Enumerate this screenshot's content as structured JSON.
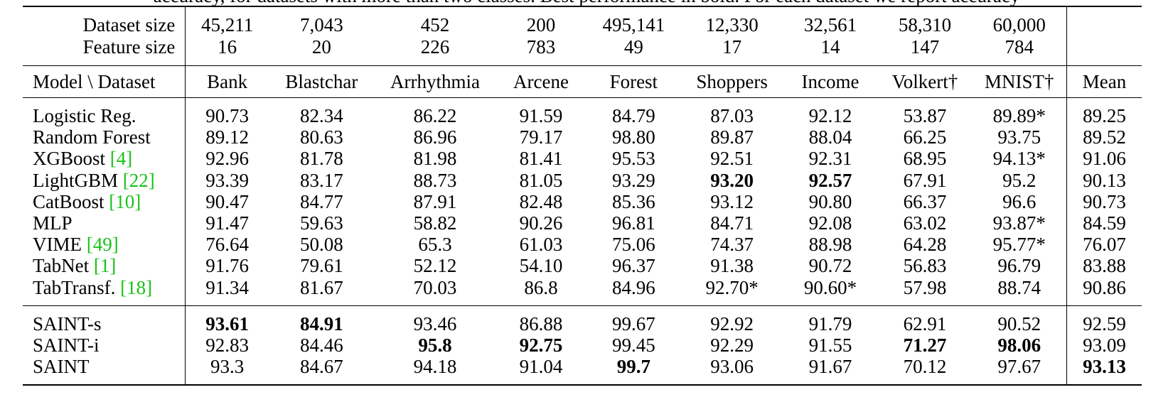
{
  "caption_fragment": "accuracy, for datasets with more than two classes. Best performance in bold. For each dataset we report accuracy",
  "meta_rows": [
    {
      "label": "Dataset size",
      "values": [
        "45,211",
        "7,043",
        "452",
        "200",
        "495,141",
        "12,330",
        "32,561",
        "58,310",
        "60,000"
      ]
    },
    {
      "label": "Feature size",
      "values": [
        "16",
        "20",
        "226",
        "783",
        "49",
        "17",
        "14",
        "147",
        "784"
      ]
    }
  ],
  "header": {
    "corner": "Model \\ Dataset",
    "datasets": [
      "Bank",
      "Blastchar",
      "Arrhythmia",
      "Arcene",
      "Forest",
      "Shoppers",
      "Income",
      "Volkert†",
      "MNIST†"
    ],
    "mean": "Mean"
  },
  "baseline_rows": [
    {
      "name": "Logistic Reg.",
      "cite": "",
      "values": [
        "90.73",
        "82.34",
        "86.22",
        "91.59",
        "84.79",
        "87.03",
        "92.12",
        "53.87",
        "89.89*"
      ],
      "mean": "89.25",
      "bold": []
    },
    {
      "name": "Random Forest",
      "cite": "",
      "values": [
        "89.12",
        "80.63",
        "86.96",
        "79.17",
        "98.80",
        "89.87",
        "88.04",
        "66.25",
        "93.75"
      ],
      "mean": "89.52",
      "bold": []
    },
    {
      "name": "XGBoost ",
      "cite": "[4]",
      "values": [
        "92.96",
        "81.78",
        "81.98",
        "81.41",
        "95.53",
        "92.51",
        "92.31",
        "68.95",
        "94.13*"
      ],
      "mean": "91.06",
      "bold": []
    },
    {
      "name": "LightGBM ",
      "cite": "[22]",
      "values": [
        "93.39",
        "83.17",
        "88.73",
        "81.05",
        "93.29",
        "93.20",
        "92.57",
        "67.91",
        "95.2"
      ],
      "mean": "90.13",
      "bold": [
        5,
        6
      ]
    },
    {
      "name": "CatBoost ",
      "cite": "[10]",
      "values": [
        "90.47",
        "84.77",
        "87.91",
        "82.48",
        "85.36",
        "93.12",
        "90.80",
        "66.37",
        "96.6"
      ],
      "mean": "90.73",
      "bold": []
    },
    {
      "name": "MLP",
      "cite": "",
      "values": [
        "91.47",
        "59.63",
        "58.82",
        "90.26",
        "96.81",
        "84.71",
        "92.08",
        "63.02",
        "93.87*"
      ],
      "mean": "84.59",
      "bold": []
    },
    {
      "name": "VIME ",
      "cite": "[49]",
      "values": [
        "76.64",
        "50.08",
        "65.3",
        "61.03",
        "75.06",
        "74.37",
        "88.98",
        "64.28",
        "95.77*"
      ],
      "mean": "76.07",
      "bold": []
    },
    {
      "name": "TabNet ",
      "cite": "[1]",
      "values": [
        "91.76",
        "79.61",
        "52.12",
        "54.10",
        "96.37",
        "91.38",
        "90.72",
        "56.83",
        "96.79"
      ],
      "mean": "83.88",
      "bold": []
    },
    {
      "name": "TabTransf. ",
      "cite": "[18]",
      "values": [
        "91.34",
        "81.67",
        "70.03",
        "86.8",
        "84.96",
        "92.70*",
        "90.60*",
        "57.98",
        "88.74"
      ],
      "mean": "90.86",
      "bold": []
    }
  ],
  "saint_rows": [
    {
      "name": "SAINT-s",
      "cite": "",
      "values": [
        "93.61",
        "84.91",
        "93.46",
        "86.88",
        "99.67",
        "92.92",
        "91.79",
        "62.91",
        "90.52"
      ],
      "mean": "92.59",
      "bold": [
        0,
        1
      ],
      "mean_bold": false
    },
    {
      "name": "SAINT-i",
      "cite": "",
      "values": [
        "92.83",
        "84.46",
        "95.8",
        "92.75",
        "99.45",
        "92.29",
        "91.55",
        "71.27",
        "98.06"
      ],
      "mean": "93.09",
      "bold": [
        2,
        3,
        7,
        8
      ],
      "mean_bold": false
    },
    {
      "name": "SAINT",
      "cite": "",
      "values": [
        "93.3",
        "84.67",
        "94.18",
        "91.04",
        "99.7",
        "93.06",
        "91.67",
        "70.12",
        "97.67"
      ],
      "mean": "93.13",
      "bold": [
        4
      ],
      "mean_bold": true
    }
  ],
  "colors": {
    "citation": "#17c217",
    "text": "#000000",
    "rule": "#000000"
  }
}
